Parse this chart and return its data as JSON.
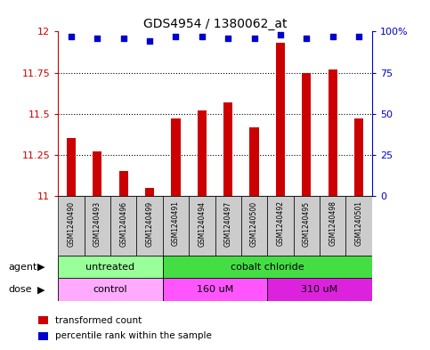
{
  "title": "GDS4954 / 1380062_at",
  "samples": [
    "GSM1240490",
    "GSM1240493",
    "GSM1240496",
    "GSM1240499",
    "GSM1240491",
    "GSM1240494",
    "GSM1240497",
    "GSM1240500",
    "GSM1240492",
    "GSM1240495",
    "GSM1240498",
    "GSM1240501"
  ],
  "bar_values": [
    11.35,
    11.27,
    11.15,
    11.05,
    11.47,
    11.52,
    11.57,
    11.42,
    11.93,
    11.75,
    11.77,
    11.47
  ],
  "percentile_values": [
    97,
    96,
    96,
    94,
    97,
    97,
    96,
    96,
    98,
    96,
    97,
    97
  ],
  "bar_color": "#cc0000",
  "percentile_color": "#0000cc",
  "ymin": 11.0,
  "ymax": 12.0,
  "yticks": [
    11.0,
    11.25,
    11.5,
    11.75,
    12.0
  ],
  "ytick_labels": [
    "11",
    "11.25",
    "11.5",
    "11.75",
    "12"
  ],
  "y2ticks": [
    0,
    25,
    50,
    75,
    100
  ],
  "y2labels": [
    "0",
    "25",
    "50",
    "75",
    "100%"
  ],
  "agent_groups": [
    {
      "label": "untreated",
      "start": 0,
      "end": 4,
      "color": "#99ff99"
    },
    {
      "label": "cobalt chloride",
      "start": 4,
      "end": 12,
      "color": "#44dd44"
    }
  ],
  "dose_groups": [
    {
      "label": "control",
      "start": 0,
      "end": 4,
      "color": "#ffaaff"
    },
    {
      "label": "160 uM",
      "start": 4,
      "end": 8,
      "color": "#ff55ff"
    },
    {
      "label": "310 uM",
      "start": 8,
      "end": 12,
      "color": "#dd22dd"
    }
  ],
  "legend_items": [
    {
      "label": "transformed count",
      "color": "#cc0000"
    },
    {
      "label": "percentile rank within the sample",
      "color": "#0000cc"
    }
  ],
  "background_color": "#ffffff",
  "bar_width": 0.35,
  "sample_box_color": "#cccccc",
  "left_label_color": "#cc0000",
  "right_label_color": "#0000cc"
}
